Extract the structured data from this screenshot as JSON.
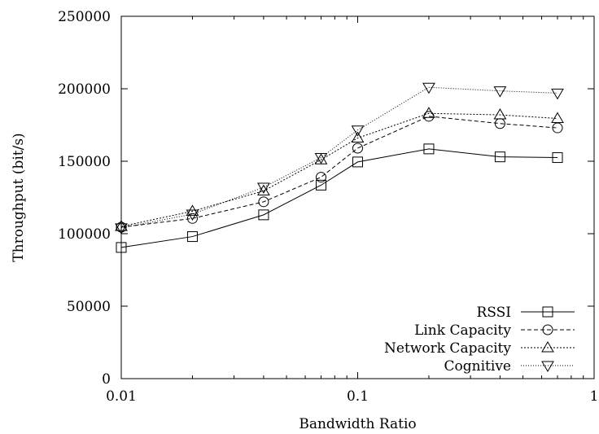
{
  "chart_data": {
    "type": "line",
    "title": "",
    "xlabel": "Bandwidth Ratio",
    "ylabel": "Throughput (bit/s)",
    "x_scale": "log",
    "xlim": [
      0.01,
      1
    ],
    "ylim": [
      0,
      250000
    ],
    "x_ticks": [
      0.01,
      0.1,
      1
    ],
    "x_tick_labels": [
      "0.01",
      "0.1",
      "1"
    ],
    "y_ticks": [
      0,
      50000,
      100000,
      150000,
      200000,
      250000
    ],
    "y_tick_labels": [
      "0",
      "50000",
      "100000",
      "150000",
      "200000",
      "250000"
    ],
    "grid": false,
    "legend_position": "bottom-right",
    "x": [
      0.01,
      0.02,
      0.04,
      0.07,
      0.1,
      0.2,
      0.4,
      0.7
    ],
    "series": [
      {
        "name": "RSSI",
        "marker": "square",
        "dash": "solid",
        "values": [
          90500,
          98000,
          113000,
          133500,
          149500,
          158500,
          153000,
          152500
        ]
      },
      {
        "name": "Link Capacity",
        "marker": "circle",
        "dash": "dashed",
        "values": [
          104500,
          110500,
          122000,
          139000,
          159000,
          181000,
          176000,
          173000
        ]
      },
      {
        "name": "Network Capacity",
        "marker": "triangle-up",
        "dash": "dotted",
        "values": [
          105000,
          115500,
          129500,
          151000,
          166000,
          183000,
          182000,
          179500
        ]
      },
      {
        "name": "Cognitive",
        "marker": "triangle-down",
        "dash": "fine-dotted",
        "values": [
          104000,
          113500,
          132000,
          152500,
          171500,
          201000,
          198500,
          197000
        ]
      }
    ]
  }
}
